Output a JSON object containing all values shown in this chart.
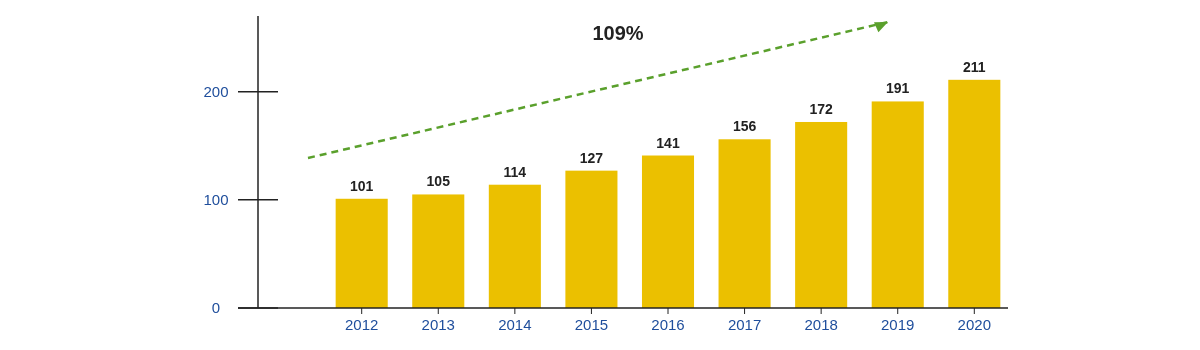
{
  "chart_data": {
    "type": "bar",
    "categories": [
      "2012",
      "2013",
      "2014",
      "2015",
      "2016",
      "2017",
      "2018",
      "2019",
      "2020"
    ],
    "values": [
      101,
      105,
      114,
      127,
      141,
      156,
      172,
      191,
      211
    ],
    "color": "#ebc000",
    "ylim": [
      0,
      270
    ],
    "yticks": [
      0,
      100,
      200
    ],
    "data_labels": true,
    "grid": false,
    "annotations": [
      "109%"
    ]
  }
}
